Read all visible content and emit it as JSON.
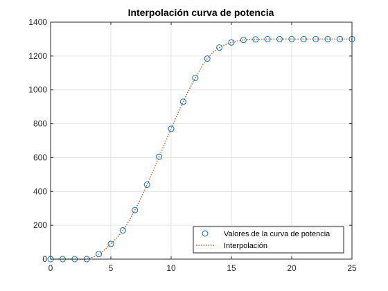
{
  "chart_data": {
    "type": "line",
    "title": "Interpolación curva de potencia",
    "xlabel": "",
    "ylabel": "",
    "xlim": [
      0,
      25
    ],
    "ylim": [
      0,
      1400
    ],
    "x_ticks": [
      0,
      5,
      10,
      15,
      20,
      25
    ],
    "y_ticks": [
      0,
      200,
      400,
      600,
      800,
      1000,
      1200,
      1400
    ],
    "grid": true,
    "legend_position": "bottom-right",
    "series": [
      {
        "name": "Valores de la curva de potencia",
        "style": "markers",
        "marker": "circle",
        "color": "#0072bd",
        "x": [
          0,
          1,
          2,
          3,
          4,
          5,
          6,
          7,
          8,
          9,
          10,
          11,
          12,
          13,
          14,
          15,
          16,
          17,
          18,
          19,
          20,
          21,
          22,
          23,
          24,
          25
        ],
        "values": [
          0,
          0,
          0,
          0,
          30,
          90,
          170,
          290,
          440,
          605,
          770,
          930,
          1070,
          1185,
          1250,
          1280,
          1295,
          1298,
          1300,
          1300,
          1300,
          1300,
          1300,
          1300,
          1300,
          1300
        ]
      },
      {
        "name": "Interpolación",
        "style": "dotted-line",
        "color": "#d95319",
        "x": [
          0,
          1,
          2,
          3,
          4,
          5,
          6,
          7,
          8,
          9,
          10,
          11,
          12,
          13,
          14,
          15,
          16,
          17,
          18,
          19,
          20,
          21,
          22,
          23,
          24,
          25
        ],
        "values": [
          0,
          0,
          0,
          0,
          30,
          90,
          170,
          290,
          440,
          605,
          770,
          930,
          1070,
          1185,
          1250,
          1280,
          1295,
          1298,
          1300,
          1300,
          1300,
          1300,
          1300,
          1300,
          1300,
          1300
        ]
      }
    ]
  }
}
